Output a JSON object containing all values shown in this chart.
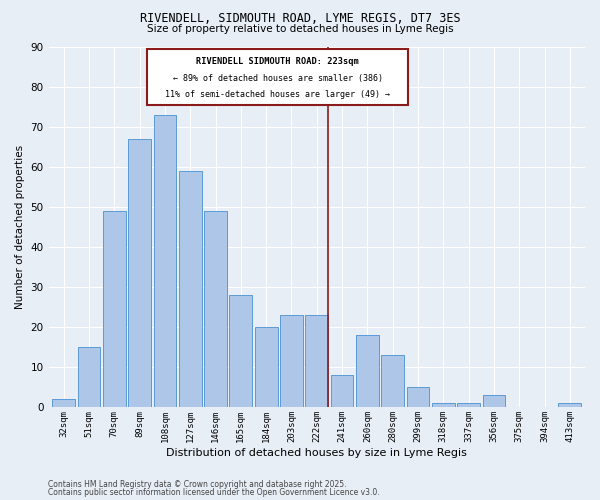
{
  "title": "RIVENDELL, SIDMOUTH ROAD, LYME REGIS, DT7 3ES",
  "subtitle": "Size of property relative to detached houses in Lyme Regis",
  "xlabel": "Distribution of detached houses by size in Lyme Regis",
  "ylabel": "Number of detached properties",
  "categories": [
    "32sqm",
    "51sqm",
    "70sqm",
    "89sqm",
    "108sqm",
    "127sqm",
    "146sqm",
    "165sqm",
    "184sqm",
    "203sqm",
    "222sqm",
    "241sqm",
    "260sqm",
    "280sqm",
    "299sqm",
    "318sqm",
    "337sqm",
    "356sqm",
    "375sqm",
    "394sqm",
    "413sqm"
  ],
  "values": [
    2,
    15,
    49,
    67,
    73,
    59,
    49,
    28,
    20,
    23,
    23,
    8,
    18,
    13,
    5,
    1,
    1,
    3,
    0,
    0,
    1
  ],
  "bar_color": "#aec6e8",
  "bar_edge_color": "#5b9bd5",
  "vline_color": "#8b1a1a",
  "annotation_title": "RIVENDELL SIDMOUTH ROAD: 223sqm",
  "annotation_line2": "← 89% of detached houses are smaller (386)",
  "annotation_line3": "11% of semi-detached houses are larger (49) →",
  "annotation_box_color": "#8b1a1a",
  "ylim": [
    0,
    90
  ],
  "yticks": [
    0,
    10,
    20,
    30,
    40,
    50,
    60,
    70,
    80,
    90
  ],
  "background_color": "#e8eef6",
  "grid_color": "#ffffff",
  "footer1": "Contains HM Land Registry data © Crown copyright and database right 2025.",
  "footer2": "Contains public sector information licensed under the Open Government Licence v3.0."
}
